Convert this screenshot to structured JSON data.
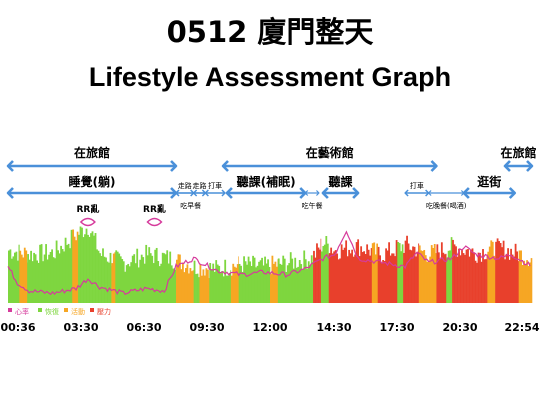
{
  "title": "0512 廈門整天",
  "subtitle": "Lifestyle Assessment Graph",
  "chart_data": {
    "type": "area",
    "x_ticks": [
      "00:36",
      "03:30",
      "06:30",
      "09:30",
      "12:00",
      "14:30",
      "17:30",
      "20:30",
      "22:54"
    ],
    "legend": [
      {
        "label": "心率",
        "color": "#d63b9c"
      },
      {
        "label": "恢復",
        "color": "#7ed63f"
      },
      {
        "label": "活動",
        "color": "#f6a623"
      },
      {
        "label": "壓力",
        "color": "#e8402c"
      }
    ],
    "colors": {
      "recovery": "#7ed63f",
      "activity": "#f6a623",
      "stress": "#e8402c",
      "heart_rate": "#d63b9c",
      "annotation": "#4a90d9",
      "rr_marker": "#d63b9c"
    },
    "annotations_level1": [
      {
        "label": "在旅館",
        "start": "00:36",
        "end": "07:45"
      },
      {
        "label": "在藝術館",
        "start": "09:45",
        "end": "18:50"
      },
      {
        "label": "在旅館",
        "start": "21:45",
        "end": "22:54"
      }
    ],
    "annotations_level2": [
      {
        "label": "睡覺(躺)",
        "start": "00:36",
        "end": "07:45"
      },
      {
        "label": "走路",
        "start": "07:45",
        "end": "08:30"
      },
      {
        "label": "走路",
        "start": "08:30",
        "end": "09:00"
      },
      {
        "label": "打車",
        "start": "09:00",
        "end": "09:50"
      },
      {
        "label": "聽課(補眠)",
        "start": "09:55",
        "end": "13:15"
      },
      {
        "label": "聽課",
        "start": "14:00",
        "end": "15:30"
      },
      {
        "label": "打車",
        "start": "17:30",
        "end": "18:30"
      },
      {
        "label": "逛街",
        "start": "20:00",
        "end": "22:10"
      }
    ],
    "annotations_level3": [
      {
        "label": "吃早餐",
        "start": "07:45",
        "end": "09:00"
      },
      {
        "label": "吃午餐",
        "start": "13:15",
        "end": "13:50"
      },
      {
        "label": "吃晚餐(喝酒)",
        "start": "18:30",
        "end": "20:00"
      }
    ],
    "rr_markers": [
      {
        "label": "RR亂",
        "time": "04:00"
      },
      {
        "label": "RR亂",
        "time": "06:50"
      }
    ],
    "state_segments": [
      {
        "start": "00:36",
        "end": "01:05",
        "state": "recovery"
      },
      {
        "start": "01:05",
        "end": "01:25",
        "state": "activity"
      },
      {
        "start": "01:25",
        "end": "03:20",
        "state": "recovery"
      },
      {
        "start": "03:20",
        "end": "03:35",
        "state": "activity"
      },
      {
        "start": "03:35",
        "end": "05:00",
        "state": "recovery"
      },
      {
        "start": "05:00",
        "end": "05:10",
        "state": "activity"
      },
      {
        "start": "05:10",
        "end": "07:45",
        "state": "recovery"
      },
      {
        "start": "07:45",
        "end": "08:30",
        "state": "activity"
      },
      {
        "start": "08:30",
        "end": "08:45",
        "state": "recovery"
      },
      {
        "start": "08:45",
        "end": "09:10",
        "state": "activity"
      },
      {
        "start": "09:10",
        "end": "10:05",
        "state": "recovery"
      },
      {
        "start": "10:05",
        "end": "10:25",
        "state": "activity"
      },
      {
        "start": "10:25",
        "end": "11:45",
        "state": "recovery"
      },
      {
        "start": "11:45",
        "end": "12:05",
        "state": "activity"
      },
      {
        "start": "12:05",
        "end": "13:35",
        "state": "recovery"
      },
      {
        "start": "13:35",
        "end": "13:55",
        "state": "stress"
      },
      {
        "start": "13:55",
        "end": "14:15",
        "state": "recovery"
      },
      {
        "start": "14:15",
        "end": "16:05",
        "state": "stress"
      },
      {
        "start": "16:05",
        "end": "16:20",
        "state": "activity"
      },
      {
        "start": "16:20",
        "end": "17:10",
        "state": "stress"
      },
      {
        "start": "17:10",
        "end": "17:25",
        "state": "recovery"
      },
      {
        "start": "17:25",
        "end": "18:05",
        "state": "stress"
      },
      {
        "start": "18:05",
        "end": "18:50",
        "state": "activity"
      },
      {
        "start": "18:50",
        "end": "19:15",
        "state": "stress"
      },
      {
        "start": "19:15",
        "end": "19:30",
        "state": "recovery"
      },
      {
        "start": "19:30",
        "end": "21:00",
        "state": "stress"
      },
      {
        "start": "21:00",
        "end": "21:20",
        "state": "activity"
      },
      {
        "start": "21:20",
        "end": "22:20",
        "state": "stress"
      },
      {
        "start": "22:20",
        "end": "22:54",
        "state": "activity"
      }
    ],
    "fill_level": [
      {
        "t": "00:36",
        "v": 0.65
      },
      {
        "t": "01:30",
        "v": 0.6
      },
      {
        "t": "02:30",
        "v": 0.62
      },
      {
        "t": "03:30",
        "v": 0.85
      },
      {
        "t": "04:00",
        "v": 0.95
      },
      {
        "t": "04:30",
        "v": 0.6
      },
      {
        "t": "05:30",
        "v": 0.5
      },
      {
        "t": "06:30",
        "v": 0.6
      },
      {
        "t": "07:30",
        "v": 0.55
      },
      {
        "t": "08:30",
        "v": 0.45
      },
      {
        "t": "09:30",
        "v": 0.42
      },
      {
        "t": "10:30",
        "v": 0.48
      },
      {
        "t": "11:30",
        "v": 0.45
      },
      {
        "t": "12:30",
        "v": 0.5
      },
      {
        "t": "13:30",
        "v": 0.55
      },
      {
        "t": "14:00",
        "v": 0.75
      },
      {
        "t": "14:30",
        "v": 0.65
      },
      {
        "t": "15:30",
        "v": 0.7
      },
      {
        "t": "16:30",
        "v": 0.6
      },
      {
        "t": "17:30",
        "v": 0.72
      },
      {
        "t": "18:30",
        "v": 0.6
      },
      {
        "t": "19:30",
        "v": 0.7
      },
      {
        "t": "20:30",
        "v": 0.62
      },
      {
        "t": "21:30",
        "v": 0.68
      },
      {
        "t": "22:54",
        "v": 0.55
      }
    ],
    "heart_rate": [
      {
        "t": "00:36",
        "v": 0.45
      },
      {
        "t": "01:00",
        "v": 0.25
      },
      {
        "t": "01:30",
        "v": 0.15
      },
      {
        "t": "02:30",
        "v": 0.12
      },
      {
        "t": "03:30",
        "v": 0.18
      },
      {
        "t": "04:00",
        "v": 0.3
      },
      {
        "t": "04:30",
        "v": 0.2
      },
      {
        "t": "05:30",
        "v": 0.12
      },
      {
        "t": "06:30",
        "v": 0.18
      },
      {
        "t": "07:15",
        "v": 0.15
      },
      {
        "t": "07:45",
        "v": 0.45
      },
      {
        "t": "08:30",
        "v": 0.55
      },
      {
        "t": "09:30",
        "v": 0.4
      },
      {
        "t": "10:30",
        "v": 0.35
      },
      {
        "t": "11:30",
        "v": 0.38
      },
      {
        "t": "12:30",
        "v": 0.35
      },
      {
        "t": "13:15",
        "v": 0.42
      },
      {
        "t": "14:00",
        "v": 0.55
      },
      {
        "t": "14:30",
        "v": 0.6
      },
      {
        "t": "15:00",
        "v": 0.9
      },
      {
        "t": "15:30",
        "v": 0.55
      },
      {
        "t": "16:30",
        "v": 0.5
      },
      {
        "t": "17:30",
        "v": 0.45
      },
      {
        "t": "18:00",
        "v": 0.62
      },
      {
        "t": "18:30",
        "v": 0.5
      },
      {
        "t": "19:30",
        "v": 0.55
      },
      {
        "t": "20:00",
        "v": 0.7
      },
      {
        "t": "20:30",
        "v": 0.6
      },
      {
        "t": "21:30",
        "v": 0.55
      },
      {
        "t": "22:00",
        "v": 0.6
      },
      {
        "t": "22:54",
        "v": 0.45
      }
    ]
  }
}
